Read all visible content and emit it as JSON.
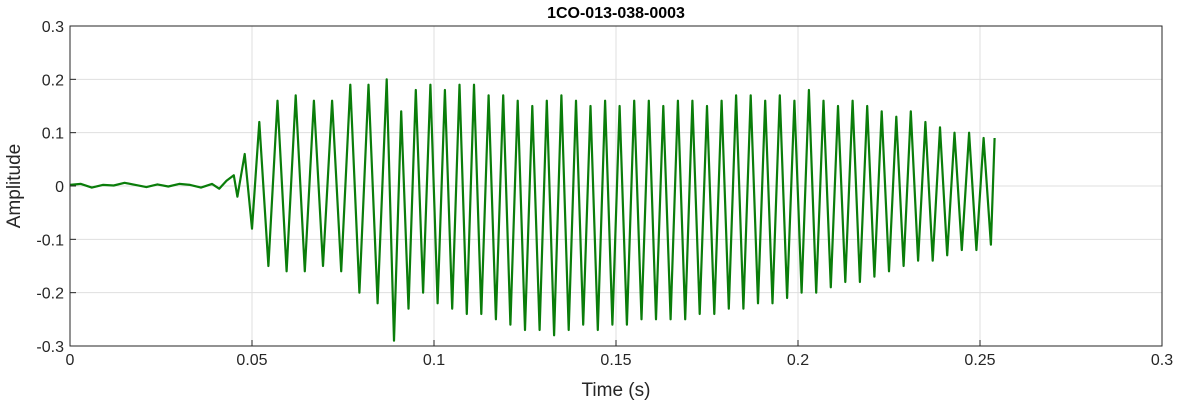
{
  "chart_data": {
    "type": "line",
    "title": "1CO-013-038-0003",
    "xlabel": "Time (s)",
    "ylabel": "Amplitude",
    "xlim": [
      0,
      0.3
    ],
    "ylim": [
      -0.3,
      0.3
    ],
    "x_ticks": [
      0,
      0.05,
      0.1,
      0.15,
      0.2,
      0.25,
      0.3
    ],
    "x_tick_labels": [
      "0",
      "0.05",
      "0.1",
      "0.15",
      "0.2",
      "0.25",
      "0.3"
    ],
    "y_ticks": [
      -0.3,
      -0.2,
      -0.1,
      0,
      0.1,
      0.2,
      0.3
    ],
    "y_tick_labels": [
      "-0.3",
      "-0.2",
      "-0.1",
      "0",
      "0.1",
      "0.2",
      "0.3"
    ],
    "grid": true,
    "series": [
      {
        "color": "#0a7d0a",
        "x": [
          0,
          0.003,
          0.006,
          0.009,
          0.012,
          0.015,
          0.018,
          0.021,
          0.024,
          0.027,
          0.03,
          0.033,
          0.036,
          0.039,
          0.041,
          0.043,
          0.045,
          0.046,
          0.048,
          0.05,
          0.052,
          0.0545,
          0.057,
          0.0595,
          0.062,
          0.0645,
          0.067,
          0.0695,
          0.072,
          0.0745,
          0.077,
          0.0795,
          0.082,
          0.0845,
          0.087,
          0.089,
          0.091,
          0.093,
          0.095,
          0.097,
          0.099,
          0.101,
          0.103,
          0.105,
          0.107,
          0.109,
          0.111,
          0.113,
          0.115,
          0.117,
          0.119,
          0.121,
          0.123,
          0.125,
          0.127,
          0.129,
          0.131,
          0.133,
          0.135,
          0.137,
          0.139,
          0.141,
          0.143,
          0.145,
          0.147,
          0.149,
          0.151,
          0.153,
          0.155,
          0.157,
          0.159,
          0.161,
          0.163,
          0.165,
          0.167,
          0.169,
          0.171,
          0.173,
          0.175,
          0.177,
          0.179,
          0.181,
          0.183,
          0.185,
          0.187,
          0.189,
          0.191,
          0.193,
          0.195,
          0.197,
          0.199,
          0.201,
          0.203,
          0.205,
          0.207,
          0.209,
          0.211,
          0.213,
          0.215,
          0.217,
          0.219,
          0.221,
          0.223,
          0.225,
          0.227,
          0.229,
          0.231,
          0.233,
          0.235,
          0.237,
          0.239,
          0.241,
          0.243,
          0.245,
          0.247,
          0.249,
          0.251,
          0.253,
          0.254
        ],
        "y": [
          0.002,
          0.004,
          -0.003,
          0.002,
          0.001,
          0.006,
          0.002,
          -0.002,
          0.003,
          -0.001,
          0.004,
          0.002,
          -0.003,
          0.004,
          -0.005,
          0.01,
          0.02,
          -0.02,
          0.06,
          -0.08,
          0.12,
          -0.15,
          0.16,
          -0.16,
          0.17,
          -0.16,
          0.16,
          -0.15,
          0.16,
          -0.16,
          0.19,
          -0.2,
          0.19,
          -0.22,
          0.2,
          -0.29,
          0.14,
          -0.23,
          0.18,
          -0.2,
          0.19,
          -0.22,
          0.18,
          -0.23,
          0.19,
          -0.24,
          0.19,
          -0.24,
          0.17,
          -0.25,
          0.17,
          -0.26,
          0.16,
          -0.27,
          0.15,
          -0.27,
          0.16,
          -0.28,
          0.17,
          -0.27,
          0.16,
          -0.26,
          0.15,
          -0.27,
          0.16,
          -0.26,
          0.15,
          -0.26,
          0.16,
          -0.25,
          0.16,
          -0.25,
          0.15,
          -0.25,
          0.16,
          -0.25,
          0.16,
          -0.24,
          0.15,
          -0.24,
          0.16,
          -0.23,
          0.17,
          -0.23,
          0.17,
          -0.22,
          0.16,
          -0.22,
          0.17,
          -0.21,
          0.16,
          -0.2,
          0.18,
          -0.2,
          0.16,
          -0.19,
          0.15,
          -0.18,
          0.16,
          -0.18,
          0.15,
          -0.17,
          0.14,
          -0.16,
          0.13,
          -0.15,
          0.14,
          -0.14,
          0.12,
          -0.14,
          0.11,
          -0.13,
          0.1,
          -0.12,
          0.1,
          -0.12,
          0.09,
          -0.11,
          0.09
        ]
      }
    ]
  }
}
